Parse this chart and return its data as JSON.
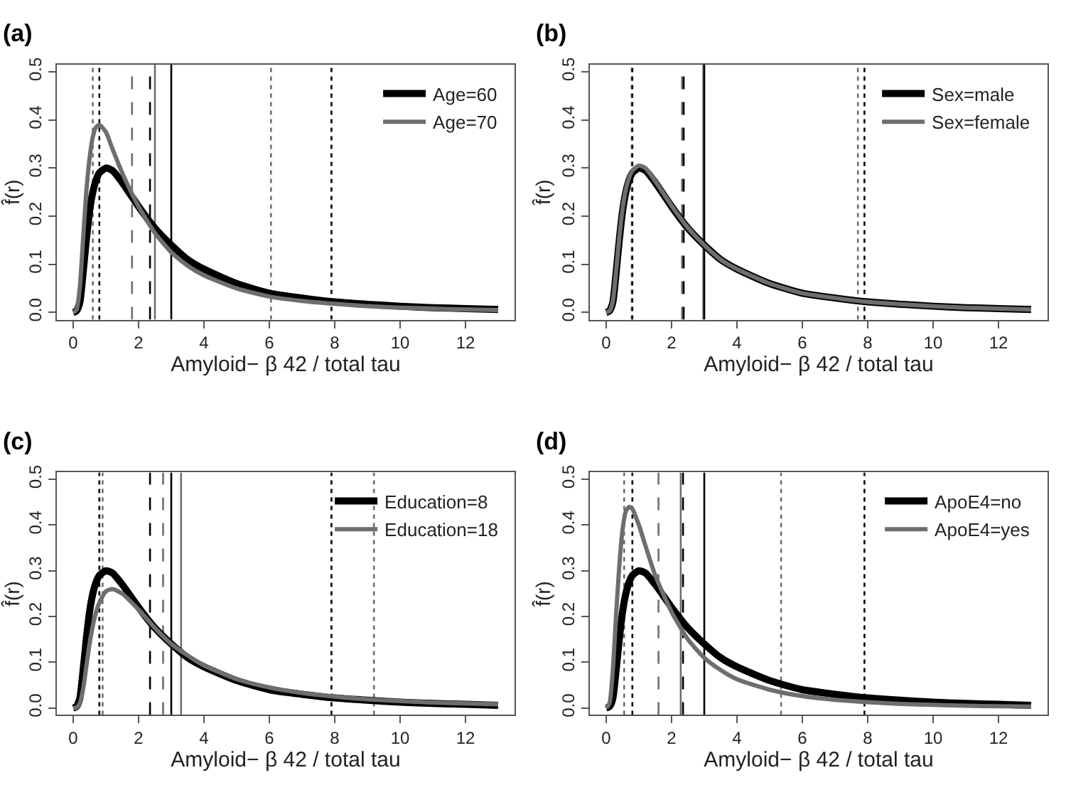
{
  "chart_data": [
    {
      "type": "line",
      "title": "(a)",
      "xlabel": "Amyloid− β 42 / total tau",
      "ylabel": "f̂(r)",
      "legend": "top right",
      "xlim": [
        -0.5,
        13.5
      ],
      "ylim": [
        -0.015,
        0.515
      ],
      "xticks": [
        0,
        2,
        4,
        6,
        8,
        10,
        12
      ],
      "yticks": [
        {
          "value": 0,
          "label": "0.0"
        },
        {
          "value": 0.1,
          "label": "0.1"
        },
        {
          "value": 0.2,
          "label": "0.2"
        },
        {
          "value": 0.3,
          "label": "0.3"
        },
        {
          "value": 0.4,
          "label": "0.4"
        },
        {
          "value": 0.5,
          "label": "0.5"
        }
      ],
      "x": [
        0,
        0.1,
        0.2,
        0.3,
        0.4,
        0.5,
        0.6,
        0.7,
        0.8,
        1.0,
        1.2,
        1.5,
        2.0,
        2.5,
        3.0,
        3.5,
        4.0,
        5.0,
        6.0,
        7.0,
        8.0,
        9.0,
        10,
        11,
        12,
        13
      ],
      "series": [
        {
          "name": "Age=60",
          "color": "#000000",
          "values": [
            0,
            0.003,
            0.02,
            0.08,
            0.15,
            0.21,
            0.25,
            0.275,
            0.29,
            0.3,
            0.295,
            0.27,
            0.22,
            0.175,
            0.14,
            0.11,
            0.09,
            0.06,
            0.04,
            0.03,
            0.022,
            0.017,
            0.013,
            0.01,
            0.008,
            0.006
          ]
        },
        {
          "name": "Age=70",
          "color": "#6e6e6e",
          "values": [
            0,
            0.005,
            0.05,
            0.15,
            0.25,
            0.32,
            0.365,
            0.385,
            0.39,
            0.375,
            0.34,
            0.29,
            0.22,
            0.165,
            0.125,
            0.097,
            0.077,
            0.05,
            0.033,
            0.024,
            0.018,
            0.013,
            0.01,
            0.008,
            0.006,
            0.005
          ]
        }
      ],
      "ref_lines": [
        {
          "axis": "x",
          "value": 0.6,
          "color": "#6e6e6e",
          "line_style": "dotted"
        },
        {
          "axis": "x",
          "value": 0.8,
          "color": "#000000",
          "line_style": "dotted"
        },
        {
          "axis": "x",
          "value": 1.8,
          "color": "#6e6e6e",
          "line_style": "dashed"
        },
        {
          "axis": "x",
          "value": 2.35,
          "color": "#000000",
          "line_style": "dashed"
        },
        {
          "axis": "x",
          "value": 2.5,
          "color": "#6e6e6e",
          "line_style": "solid"
        },
        {
          "axis": "x",
          "value": 3.0,
          "color": "#000000",
          "line_style": "solid"
        },
        {
          "axis": "x",
          "value": 6.05,
          "color": "#6e6e6e",
          "line_style": "dotted"
        },
        {
          "axis": "x",
          "value": 7.9,
          "color": "#000000",
          "line_style": "dotted"
        }
      ]
    },
    {
      "type": "line",
      "title": "(b)",
      "xlabel": "Amyloid− β 42 / total tau",
      "ylabel": "f̂(r)",
      "legend": "top right",
      "xlim": [
        -0.5,
        13.5
      ],
      "ylim": [
        -0.015,
        0.515
      ],
      "xticks": [
        0,
        2,
        4,
        6,
        8,
        10,
        12
      ],
      "yticks": [
        {
          "value": 0,
          "label": "0.0"
        },
        {
          "value": 0.1,
          "label": "0.1"
        },
        {
          "value": 0.2,
          "label": "0.2"
        },
        {
          "value": 0.3,
          "label": "0.3"
        },
        {
          "value": 0.4,
          "label": "0.4"
        },
        {
          "value": 0.5,
          "label": "0.5"
        }
      ],
      "x": [
        0,
        0.1,
        0.2,
        0.3,
        0.4,
        0.5,
        0.6,
        0.7,
        0.8,
        1.0,
        1.2,
        1.5,
        2.0,
        2.5,
        3.0,
        3.5,
        4.0,
        5.0,
        6.0,
        7.0,
        8.0,
        9.0,
        10,
        11,
        12,
        13
      ],
      "series": [
        {
          "name": "Sex=male",
          "color": "#000000",
          "values": [
            0,
            0.003,
            0.02,
            0.08,
            0.15,
            0.21,
            0.25,
            0.275,
            0.29,
            0.3,
            0.295,
            0.27,
            0.22,
            0.175,
            0.14,
            0.11,
            0.09,
            0.06,
            0.04,
            0.03,
            0.022,
            0.017,
            0.013,
            0.01,
            0.008,
            0.006
          ]
        },
        {
          "name": "Sex=female",
          "color": "#6e6e6e",
          "values": [
            0,
            0.003,
            0.022,
            0.083,
            0.155,
            0.215,
            0.255,
            0.28,
            0.295,
            0.305,
            0.3,
            0.273,
            0.222,
            0.176,
            0.14,
            0.11,
            0.09,
            0.06,
            0.04,
            0.03,
            0.022,
            0.017,
            0.013,
            0.01,
            0.008,
            0.006
          ]
        }
      ],
      "ref_lines": [
        {
          "axis": "x",
          "value": 0.78,
          "color": "#6e6e6e",
          "line_style": "dotted"
        },
        {
          "axis": "x",
          "value": 0.8,
          "color": "#000000",
          "line_style": "dotted"
        },
        {
          "axis": "x",
          "value": 2.32,
          "color": "#6e6e6e",
          "line_style": "dashed"
        },
        {
          "axis": "x",
          "value": 2.37,
          "color": "#000000",
          "line_style": "dashed"
        },
        {
          "axis": "x",
          "value": 2.97,
          "color": "#6e6e6e",
          "line_style": "solid"
        },
        {
          "axis": "x",
          "value": 3.0,
          "color": "#000000",
          "line_style": "solid"
        },
        {
          "axis": "x",
          "value": 7.7,
          "color": "#6e6e6e",
          "line_style": "dotted"
        },
        {
          "axis": "x",
          "value": 7.9,
          "color": "#000000",
          "line_style": "dotted"
        }
      ]
    },
    {
      "type": "line",
      "title": "(c)",
      "xlabel": "Amyloid− β 42 / total tau",
      "ylabel": "f̂(r)",
      "legend": "top right",
      "xlim": [
        -0.5,
        13.5
      ],
      "ylim": [
        -0.015,
        0.515
      ],
      "xticks": [
        0,
        2,
        4,
        6,
        8,
        10,
        12
      ],
      "yticks": [
        {
          "value": 0,
          "label": "0.0"
        },
        {
          "value": 0.1,
          "label": "0.1"
        },
        {
          "value": 0.2,
          "label": "0.2"
        },
        {
          "value": 0.3,
          "label": "0.3"
        },
        {
          "value": 0.4,
          "label": "0.4"
        },
        {
          "value": 0.5,
          "label": "0.5"
        }
      ],
      "x": [
        0,
        0.1,
        0.2,
        0.3,
        0.4,
        0.5,
        0.6,
        0.7,
        0.8,
        1.0,
        1.2,
        1.5,
        2.0,
        2.5,
        3.0,
        3.5,
        4.0,
        5.0,
        6.0,
        7.0,
        8.0,
        9.0,
        10,
        11,
        12,
        13
      ],
      "series": [
        {
          "name": "Education=8",
          "color": "#000000",
          "values": [
            0,
            0.003,
            0.02,
            0.08,
            0.15,
            0.21,
            0.25,
            0.275,
            0.29,
            0.3,
            0.295,
            0.27,
            0.22,
            0.175,
            0.14,
            0.11,
            0.09,
            0.06,
            0.04,
            0.03,
            0.022,
            0.017,
            0.013,
            0.01,
            0.008,
            0.006
          ]
        },
        {
          "name": "Education=18",
          "color": "#6e6e6e",
          "values": [
            0,
            0.001,
            0.01,
            0.04,
            0.09,
            0.14,
            0.18,
            0.21,
            0.23,
            0.255,
            0.26,
            0.25,
            0.215,
            0.175,
            0.14,
            0.115,
            0.093,
            0.063,
            0.045,
            0.033,
            0.025,
            0.019,
            0.015,
            0.012,
            0.01,
            0.008
          ]
        }
      ],
      "ref_lines": [
        {
          "axis": "x",
          "value": 0.8,
          "color": "#000000",
          "line_style": "dotted"
        },
        {
          "axis": "x",
          "value": 0.9,
          "color": "#6e6e6e",
          "line_style": "dotted"
        },
        {
          "axis": "x",
          "value": 2.35,
          "color": "#000000",
          "line_style": "dashed"
        },
        {
          "axis": "x",
          "value": 2.75,
          "color": "#6e6e6e",
          "line_style": "dashed"
        },
        {
          "axis": "x",
          "value": 3.0,
          "color": "#000000",
          "line_style": "solid"
        },
        {
          "axis": "x",
          "value": 3.3,
          "color": "#6e6e6e",
          "line_style": "solid"
        },
        {
          "axis": "x",
          "value": 7.9,
          "color": "#000000",
          "line_style": "dotted"
        },
        {
          "axis": "x",
          "value": 9.2,
          "color": "#6e6e6e",
          "line_style": "dotted"
        }
      ]
    },
    {
      "type": "line",
      "title": "(d)",
      "xlabel": "Amyloid− β 42 / total tau",
      "ylabel": "f̂(r)",
      "legend": "top right",
      "xlim": [
        -0.5,
        13.5
      ],
      "ylim": [
        -0.015,
        0.515
      ],
      "xticks": [
        0,
        2,
        4,
        6,
        8,
        10,
        12
      ],
      "yticks": [
        {
          "value": 0,
          "label": "0.0"
        },
        {
          "value": 0.1,
          "label": "0.1"
        },
        {
          "value": 0.2,
          "label": "0.2"
        },
        {
          "value": 0.3,
          "label": "0.3"
        },
        {
          "value": 0.4,
          "label": "0.4"
        },
        {
          "value": 0.5,
          "label": "0.5"
        }
      ],
      "x": [
        0,
        0.1,
        0.2,
        0.3,
        0.4,
        0.5,
        0.6,
        0.7,
        0.8,
        1.0,
        1.2,
        1.5,
        2.0,
        2.5,
        3.0,
        3.5,
        4.0,
        5.0,
        6.0,
        7.0,
        8.0,
        9.0,
        10,
        11,
        12,
        13
      ],
      "series": [
        {
          "name": "ApoE4=no",
          "color": "#000000",
          "values": [
            0,
            0.003,
            0.02,
            0.08,
            0.15,
            0.21,
            0.25,
            0.275,
            0.29,
            0.3,
            0.295,
            0.27,
            0.22,
            0.175,
            0.14,
            0.11,
            0.09,
            0.06,
            0.04,
            0.03,
            0.022,
            0.017,
            0.013,
            0.01,
            0.008,
            0.006
          ]
        },
        {
          "name": "ApoE4=yes",
          "color": "#6e6e6e",
          "values": [
            0,
            0.01,
            0.08,
            0.2,
            0.31,
            0.39,
            0.43,
            0.44,
            0.435,
            0.4,
            0.355,
            0.29,
            0.21,
            0.15,
            0.11,
            0.083,
            0.063,
            0.04,
            0.026,
            0.018,
            0.013,
            0.009,
            0.007,
            0.005,
            0.004,
            0.003
          ]
        }
      ],
      "ref_lines": [
        {
          "axis": "x",
          "value": 0.55,
          "color": "#6e6e6e",
          "line_style": "dotted"
        },
        {
          "axis": "x",
          "value": 0.8,
          "color": "#000000",
          "line_style": "dotted"
        },
        {
          "axis": "x",
          "value": 1.6,
          "color": "#6e6e6e",
          "line_style": "dashed"
        },
        {
          "axis": "x",
          "value": 2.28,
          "color": "#6e6e6e",
          "line_style": "solid"
        },
        {
          "axis": "x",
          "value": 2.35,
          "color": "#000000",
          "line_style": "dashed"
        },
        {
          "axis": "x",
          "value": 3.0,
          "color": "#000000",
          "line_style": "solid"
        },
        {
          "axis": "x",
          "value": 5.35,
          "color": "#6e6e6e",
          "line_style": "dotted"
        },
        {
          "axis": "x",
          "value": 7.9,
          "color": "#000000",
          "line_style": "dotted"
        }
      ]
    }
  ]
}
